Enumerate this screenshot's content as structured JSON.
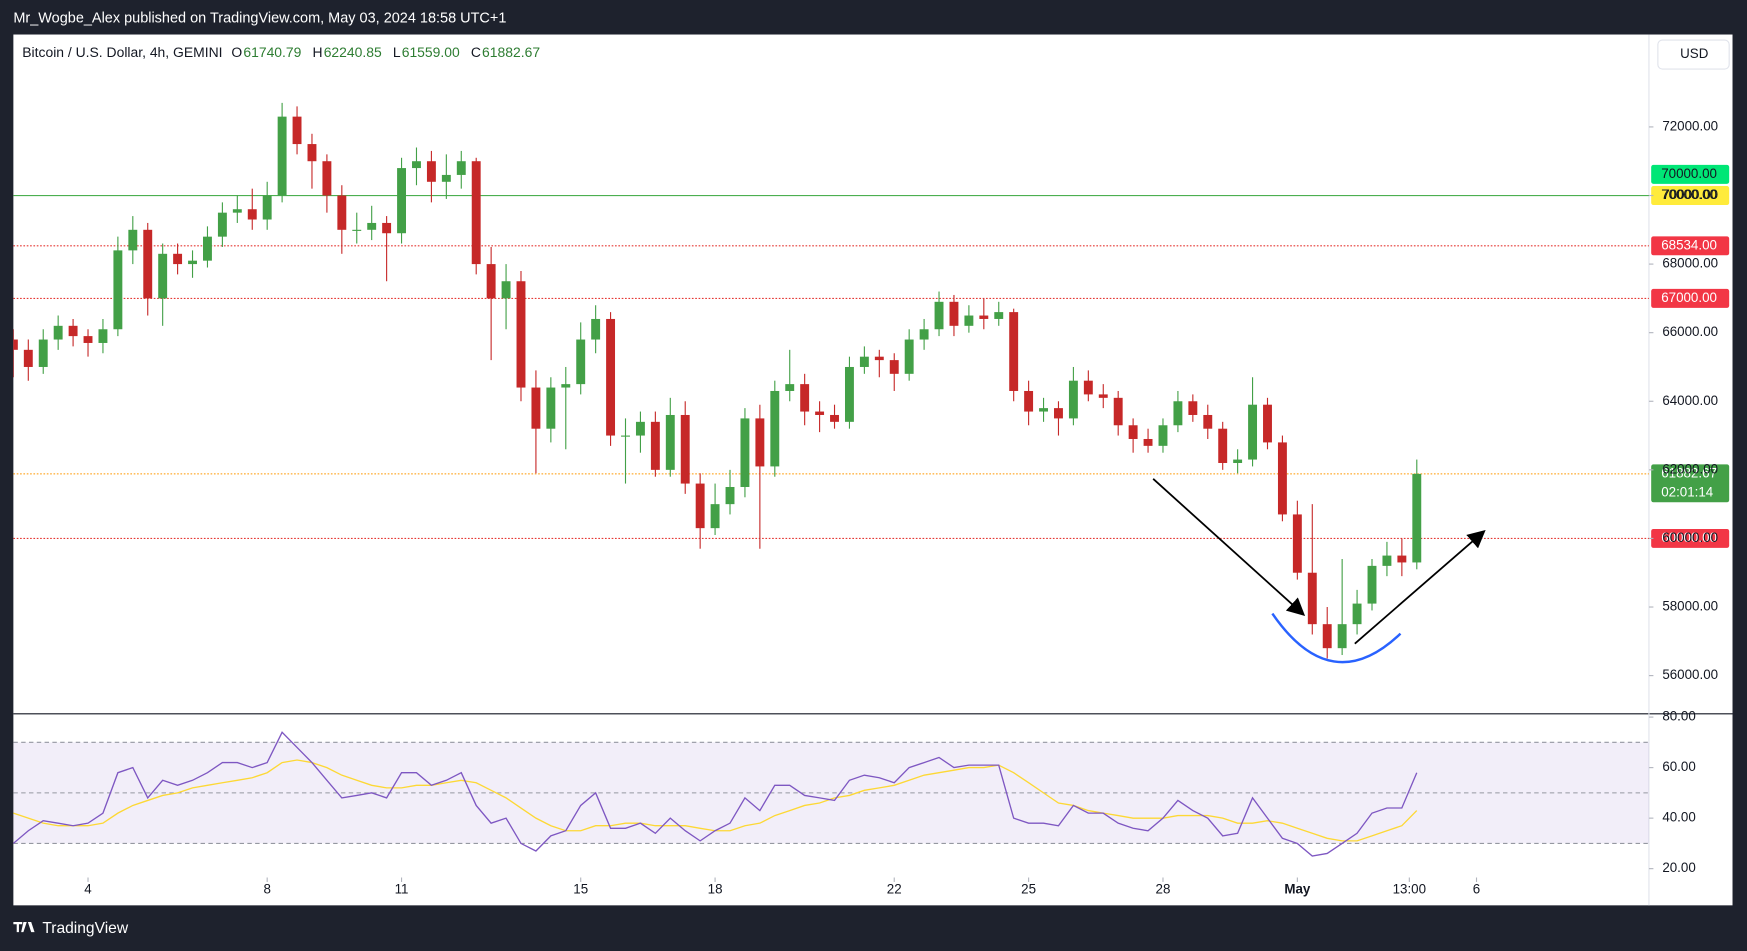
{
  "header": {
    "publisher": "Mr_Wogbe_Alex published on TradingView.com, May 03, 2024 18:58 UTC+1",
    "symbol": "Bitcoin / U.S. Dollar, 4h, GEMINI",
    "ohlc": [
      {
        "key": "O",
        "value": "61740.79"
      },
      {
        "key": "H",
        "value": "62240.85"
      },
      {
        "key": "L",
        "value": "61559.00"
      },
      {
        "key": "C",
        "value": "61882.67"
      }
    ],
    "currency": "USD"
  },
  "footer": {
    "brand": "TradingView"
  },
  "chart_data": {
    "type": "candlestick",
    "up_color": "#43a047",
    "down_color": "#c62828",
    "candles": [
      [
        65800,
        66100,
        64700,
        65500
      ],
      [
        65500,
        65800,
        64600,
        65000
      ],
      [
        65000,
        66100,
        64800,
        65800
      ],
      [
        65800,
        66500,
        65500,
        66200
      ],
      [
        66200,
        66400,
        65600,
        65900
      ],
      [
        65900,
        66100,
        65300,
        65700
      ],
      [
        65700,
        66400,
        65400,
        66100
      ],
      [
        66100,
        68800,
        65900,
        68400
      ],
      [
        68400,
        69400,
        68000,
        69000
      ],
      [
        69000,
        69200,
        66500,
        67000
      ],
      [
        67000,
        68600,
        66200,
        68300
      ],
      [
        68300,
        68600,
        67700,
        68000
      ],
      [
        68000,
        68400,
        67600,
        68100
      ],
      [
        68100,
        69100,
        67900,
        68800
      ],
      [
        68800,
        69800,
        68500,
        69500
      ],
      [
        69500,
        70000,
        69200,
        69600
      ],
      [
        69600,
        70200,
        69000,
        69300
      ],
      [
        69300,
        70400,
        69000,
        70000
      ],
      [
        70000,
        72700,
        69800,
        72300
      ],
      [
        72300,
        72600,
        71200,
        71500
      ],
      [
        71500,
        71800,
        70200,
        71000
      ],
      [
        71000,
        71200,
        69500,
        70000
      ],
      [
        70000,
        70300,
        68300,
        69000
      ],
      [
        69000,
        69500,
        68600,
        69000
      ],
      [
        69000,
        69700,
        68700,
        69200
      ],
      [
        69200,
        69400,
        67500,
        68900
      ],
      [
        68900,
        71100,
        68600,
        70800
      ],
      [
        70800,
        71400,
        70300,
        71000
      ],
      [
        71000,
        71300,
        69800,
        70400
      ],
      [
        70400,
        71200,
        69900,
        70600
      ],
      [
        70600,
        71300,
        70200,
        71000
      ],
      [
        71000,
        71100,
        67700,
        68000
      ],
      [
        68000,
        68500,
        65200,
        67000
      ],
      [
        67000,
        68000,
        66100,
        67500
      ],
      [
        67500,
        67800,
        64000,
        64400
      ],
      [
        64400,
        64900,
        61900,
        63200
      ],
      [
        63200,
        64700,
        62800,
        64400
      ],
      [
        64400,
        65000,
        62600,
        64500
      ],
      [
        64500,
        66300,
        64200,
        65800
      ],
      [
        65800,
        66800,
        65400,
        66400
      ],
      [
        66400,
        66600,
        62700,
        63000
      ],
      [
        63000,
        63500,
        61600,
        63000
      ],
      [
        63000,
        63700,
        62500,
        63400
      ],
      [
        63400,
        63700,
        61800,
        62000
      ],
      [
        62000,
        64100,
        61800,
        63600
      ],
      [
        63600,
        64000,
        61300,
        61600
      ],
      [
        61600,
        61900,
        59700,
        60300
      ],
      [
        60300,
        61600,
        60100,
        61000
      ],
      [
        61000,
        62000,
        60700,
        61500
      ],
      [
        61500,
        63800,
        61200,
        63500
      ],
      [
        63500,
        63900,
        59700,
        62100
      ],
      [
        62100,
        64600,
        61800,
        64300
      ],
      [
        64300,
        65500,
        64000,
        64500
      ],
      [
        64500,
        64800,
        63300,
        63700
      ],
      [
        63700,
        64000,
        63100,
        63600
      ],
      [
        63600,
        63900,
        63200,
        63400
      ],
      [
        63400,
        65300,
        63200,
        65000
      ],
      [
        65000,
        65600,
        64800,
        65300
      ],
      [
        65300,
        65500,
        64700,
        65200
      ],
      [
        65200,
        65400,
        64300,
        64800
      ],
      [
        64800,
        66100,
        64600,
        65800
      ],
      [
        65800,
        66400,
        65500,
        66100
      ],
      [
        66100,
        67200,
        65900,
        66900
      ],
      [
        66900,
        67100,
        65900,
        66200
      ],
      [
        66200,
        66800,
        66000,
        66500
      ],
      [
        66500,
        67000,
        66100,
        66400
      ],
      [
        66400,
        66900,
        66200,
        66600
      ],
      [
        66600,
        66700,
        64000,
        64300
      ],
      [
        64300,
        64600,
        63300,
        63700
      ],
      [
        63700,
        64100,
        63400,
        63800
      ],
      [
        63800,
        64000,
        63000,
        63500
      ],
      [
        63500,
        65000,
        63300,
        64600
      ],
      [
        64600,
        64900,
        64000,
        64200
      ],
      [
        64200,
        64500,
        63800,
        64100
      ],
      [
        64100,
        64300,
        63000,
        63300
      ],
      [
        63300,
        63500,
        62500,
        62900
      ],
      [
        62900,
        63200,
        62500,
        62700
      ],
      [
        62700,
        63500,
        62500,
        63300
      ],
      [
        63300,
        64300,
        63100,
        64000
      ],
      [
        64000,
        64200,
        63400,
        63600
      ],
      [
        63600,
        63900,
        62900,
        63200
      ],
      [
        63200,
        63400,
        62000,
        62200
      ],
      [
        62200,
        62600,
        61900,
        62300
      ],
      [
        62300,
        64700,
        62100,
        63900
      ],
      [
        63900,
        64100,
        62600,
        62800
      ],
      [
        62800,
        63000,
        60500,
        60700
      ],
      [
        60700,
        61100,
        58800,
        59000
      ],
      [
        59000,
        61000,
        57200,
        57500
      ],
      [
        57500,
        58000,
        56500,
        56800
      ],
      [
        56800,
        59400,
        56600,
        57500
      ],
      [
        57500,
        58500,
        57200,
        58100
      ],
      [
        58100,
        59400,
        57900,
        59200
      ],
      [
        59200,
        59900,
        58900,
        59500
      ],
      [
        59500,
        60000,
        58900,
        59300
      ],
      [
        59300,
        62300,
        59100,
        61882.67
      ]
    ],
    "xlim": [
      0,
      109.55
    ],
    "xticks": [
      {
        "value": 5,
        "label": "4"
      },
      {
        "value": 17,
        "label": "8"
      },
      {
        "value": 26,
        "label": "11"
      },
      {
        "value": 38,
        "label": "15"
      },
      {
        "value": 47,
        "label": "18"
      },
      {
        "value": 59,
        "label": "22"
      },
      {
        "value": 68,
        "label": "25"
      },
      {
        "value": 77,
        "label": "28"
      },
      {
        "value": 86,
        "label": "May"
      },
      {
        "value": 93.5,
        "label": "13:00"
      },
      {
        "value": 98,
        "label": "6"
      }
    ],
    "ylim": [
      54886,
      74662
    ],
    "yticks": [
      {
        "value": 56000,
        "label": "56000.00"
      },
      {
        "value": 58000,
        "label": "58000.00"
      },
      {
        "value": 60000,
        "label": "60000.00"
      },
      {
        "value": 62000,
        "label": "62000.00"
      },
      {
        "value": 64000,
        "label": "64000.00"
      },
      {
        "value": 66000,
        "label": "66000.00"
      },
      {
        "value": 68000,
        "label": "68000.00"
      },
      {
        "value": 70000,
        "label": "70000.00"
      },
      {
        "value": 72000,
        "label": "72000.00"
      }
    ],
    "price_lines": [
      {
        "value": 70000,
        "color": "#4caf50",
        "style": "solid"
      },
      {
        "value": 68534,
        "color": "#e53935",
        "style": "dotted"
      },
      {
        "value": 67000,
        "color": "#e53935",
        "style": "dotted"
      },
      {
        "value": 61882.67,
        "color": "#ff9800",
        "style": "dotted"
      },
      {
        "value": 60000,
        "color": "#e53935",
        "style": "dotted"
      }
    ],
    "price_tags": [
      {
        "value": 70000,
        "label": "70000.00",
        "bg": "#ffeb3b",
        "fg": "#131722"
      },
      {
        "value": 70000,
        "label": "70000.00",
        "bg": "#00e676",
        "fg": "#131722"
      },
      {
        "value": 68534,
        "label": "68534.00",
        "bg": "#f23645",
        "fg": "#ffffff"
      },
      {
        "value": 67000,
        "label": "67000.00",
        "bg": "#f23645",
        "fg": "#ffffff"
      },
      {
        "value": 60000,
        "label": "60000.00",
        "bg": "#f23645",
        "fg": "#ffffff"
      },
      {
        "value": 61882.67,
        "label": "61882.67",
        "countdown": "02:01:14",
        "bg": "#43a047",
        "fg": "#ffffff"
      }
    ],
    "rsi": {
      "color": "#7e57c2",
      "ma_color": "#fdd835",
      "values": [
        30,
        35,
        39,
        38,
        37,
        38,
        42,
        58,
        60,
        48,
        55,
        53,
        55,
        58,
        62,
        62,
        60,
        62,
        74,
        68,
        62,
        55,
        48,
        49,
        50,
        48,
        58,
        58,
        53,
        55,
        58,
        45,
        38,
        40,
        30,
        27,
        33,
        35,
        45,
        50,
        36,
        36,
        38,
        34,
        40,
        35,
        31,
        35,
        38,
        48,
        43,
        53,
        53,
        49,
        48,
        47,
        55,
        57,
        56,
        54,
        60,
        62,
        64,
        60,
        61,
        61,
        61,
        40,
        38,
        38,
        37,
        45,
        42,
        42,
        38,
        36,
        35,
        40,
        47,
        43,
        40,
        33,
        34,
        48,
        40,
        32,
        30,
        25,
        26,
        30,
        34,
        42,
        44,
        44,
        58
      ],
      "ma": [
        42,
        40,
        38,
        37,
        37,
        37,
        38,
        42,
        45,
        47,
        49,
        50,
        52,
        53,
        54,
        55,
        56,
        58,
        62,
        63,
        62,
        60,
        57,
        55,
        53,
        52,
        52,
        53,
        53,
        54,
        55,
        54,
        51,
        48,
        44,
        40,
        37,
        35,
        35,
        37,
        37,
        38,
        38,
        37,
        37,
        37,
        36,
        35,
        35,
        37,
        38,
        41,
        43,
        45,
        46,
        48,
        49,
        51,
        52,
        53,
        55,
        57,
        58,
        59,
        60,
        60,
        61,
        58,
        54,
        50,
        46,
        45,
        43,
        42,
        41,
        40,
        40,
        40,
        41,
        41,
        41,
        40,
        38,
        38,
        39,
        38,
        36,
        34,
        32,
        31,
        31,
        33,
        35,
        37,
        43
      ],
      "ylim": [
        16.5,
        81.3
      ],
      "yticks": [
        {
          "value": 20,
          "label": "20.00"
        },
        {
          "value": 40,
          "label": "40.00"
        },
        {
          "value": 60,
          "label": "60.00"
        },
        {
          "value": 80,
          "label": "80.00"
        }
      ],
      "levels": [
        30,
        50,
        70
      ]
    }
  }
}
